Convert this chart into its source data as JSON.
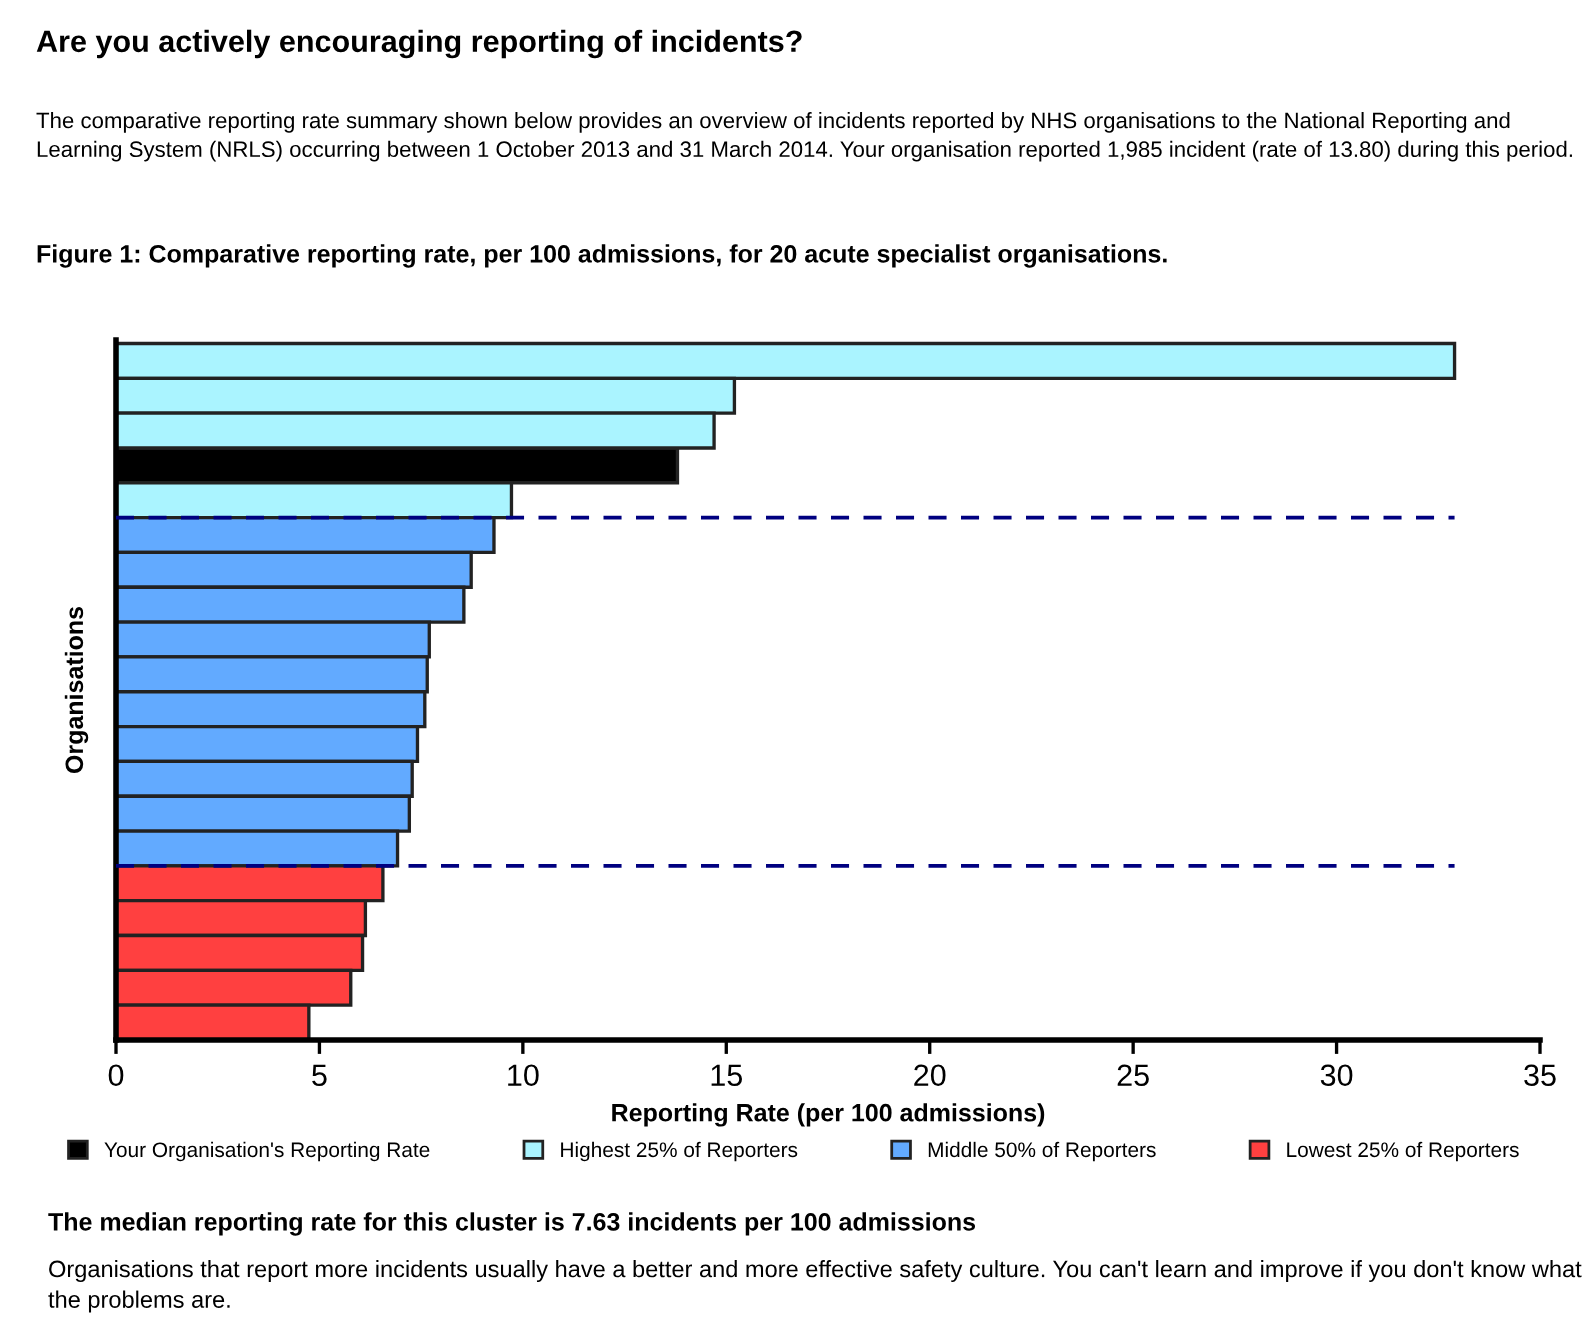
{
  "chart_data": {
    "type": "bar",
    "orientation": "horizontal",
    "title": "Are you actively encouraging reporting of incidents?",
    "subtitle": "The comparative reporting rate summary shown below provides an overview of incidents reported by NHS organisations to the National Reporting and Learning System (NRLS) occurring between 1 October 2013 and 31 March 2014. Your organisation reported 1,985 incident (rate of 13.80) during this period.",
    "xlabel": "Reporting Rate (per 100 admissions)",
    "ylabel": "Organisations",
    "categories": [
      null,
      null,
      null,
      null,
      null,
      null,
      null,
      null,
      null,
      null,
      null,
      null,
      null,
      null,
      null,
      null,
      null,
      null,
      null,
      null
    ],
    "series": [
      {
        "name": "Your Organisation's Reporting Rate",
        "color": "#000000",
        "values": [
          null,
          null,
          null,
          13.8,
          null,
          null,
          null,
          null,
          null,
          null,
          null,
          null,
          null,
          null,
          null,
          null,
          null,
          null,
          null,
          null
        ]
      },
      {
        "name": "Highest 25% of Reporters",
        "color": "#aaf4ff",
        "values": [
          32.9,
          15.2,
          14.7,
          null,
          9.72,
          null,
          null,
          null,
          null,
          null,
          null,
          null,
          null,
          null,
          null,
          null,
          null,
          null,
          null,
          null
        ]
      },
      {
        "name": "Middle 50% of Reporters",
        "color": "#62aaff",
        "values": [
          null,
          null,
          null,
          null,
          null,
          9.29,
          8.73,
          8.55,
          7.7,
          7.65,
          7.59,
          7.41,
          7.28,
          7.21,
          6.92,
          null,
          null,
          null,
          null,
          null
        ]
      },
      {
        "name": "Lowest 25% of Reporters",
        "color": "#ff4040",
        "values": [
          null,
          null,
          null,
          null,
          null,
          null,
          null,
          null,
          null,
          null,
          null,
          null,
          null,
          null,
          null,
          6.56,
          6.13,
          6.06,
          5.77,
          4.74
        ]
      }
    ],
    "xlim": [
      0,
      35
    ],
    "xticks": [
      0,
      5,
      10,
      15,
      20,
      25,
      30,
      35
    ],
    "tick_labels": "x",
    "grid": false,
    "legend": "bottom",
    "annotations": [
      "Figure 1: Comparative reporting rate, per 100 admissions, for 20 acute specialist organisations.",
      "The median reporting rate for this cluster is 7.63 incidents per 100 admissions",
      "Organisations that report more incidents usually have a better and more effective safety culture. You can't learn and improve if you don't know what the problems are."
    ]
  }
}
